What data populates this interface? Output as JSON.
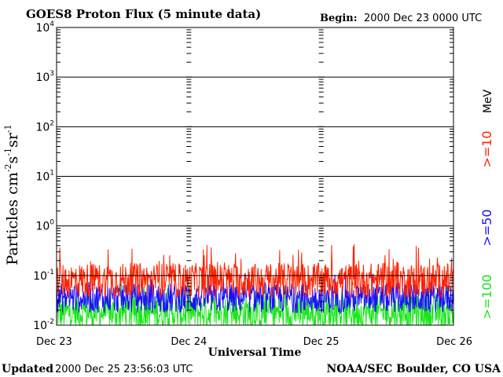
{
  "header": {
    "title": "GOES8 Proton Flux (5 minute data)",
    "begin_label": "Begin:",
    "begin_value": "2000 Dec 23 0000 UTC"
  },
  "footer": {
    "updated_label": "Updated",
    "updated_value": "2000 Dec 25 23:56:03 UTC",
    "credit": "NOAA/SEC Boulder, CO USA"
  },
  "colors": {
    "ge10": "#ff2200",
    "ge50": "#1a10ff",
    "ge100": "#19e619",
    "axis": "#000000"
  },
  "chart_data": {
    "type": "line",
    "title": "GOES8 Proton Flux (5 minute data)",
    "xlabel": "Universal Time",
    "ylabel_base": "Particles cm",
    "ylabel_exp1": "-2",
    "ylabel_mid1": "s",
    "ylabel_exp2": "-1",
    "ylabel_mid2": "sr",
    "ylabel_exp3": "-1",
    "yscale": "log",
    "ylim": [
      0.01,
      10000
    ],
    "y_ticks": [
      {
        "value": 10000,
        "base": "10",
        "exp": "4"
      },
      {
        "value": 1000,
        "base": "10",
        "exp": "3"
      },
      {
        "value": 100,
        "base": "10",
        "exp": "2"
      },
      {
        "value": 10,
        "base": "10",
        "exp": "1"
      },
      {
        "value": 1,
        "base": "10",
        "exp": "0"
      },
      {
        "value": 0.1,
        "base": "10",
        "exp": "-1"
      },
      {
        "value": 0.01,
        "base": "10",
        "exp": "-2"
      }
    ],
    "x_ticks": [
      "Dec 23",
      "Dec 24",
      "Dec 25",
      "Dec 26"
    ],
    "xlim_days": [
      0,
      3
    ],
    "legend_unit": "MeV",
    "series": [
      {
        "name": ">=10",
        "color_key": "ge10",
        "center": 0.08,
        "spread": 0.35,
        "spike_max": 0.35
      },
      {
        "name": ">=50",
        "color_key": "ge50",
        "center": 0.035,
        "spread": 0.3,
        "spike_max": 0.08
      },
      {
        "name": ">=100",
        "color_key": "ge100",
        "center": 0.018,
        "spread": 0.35,
        "spike_max": 0.05
      }
    ]
  }
}
